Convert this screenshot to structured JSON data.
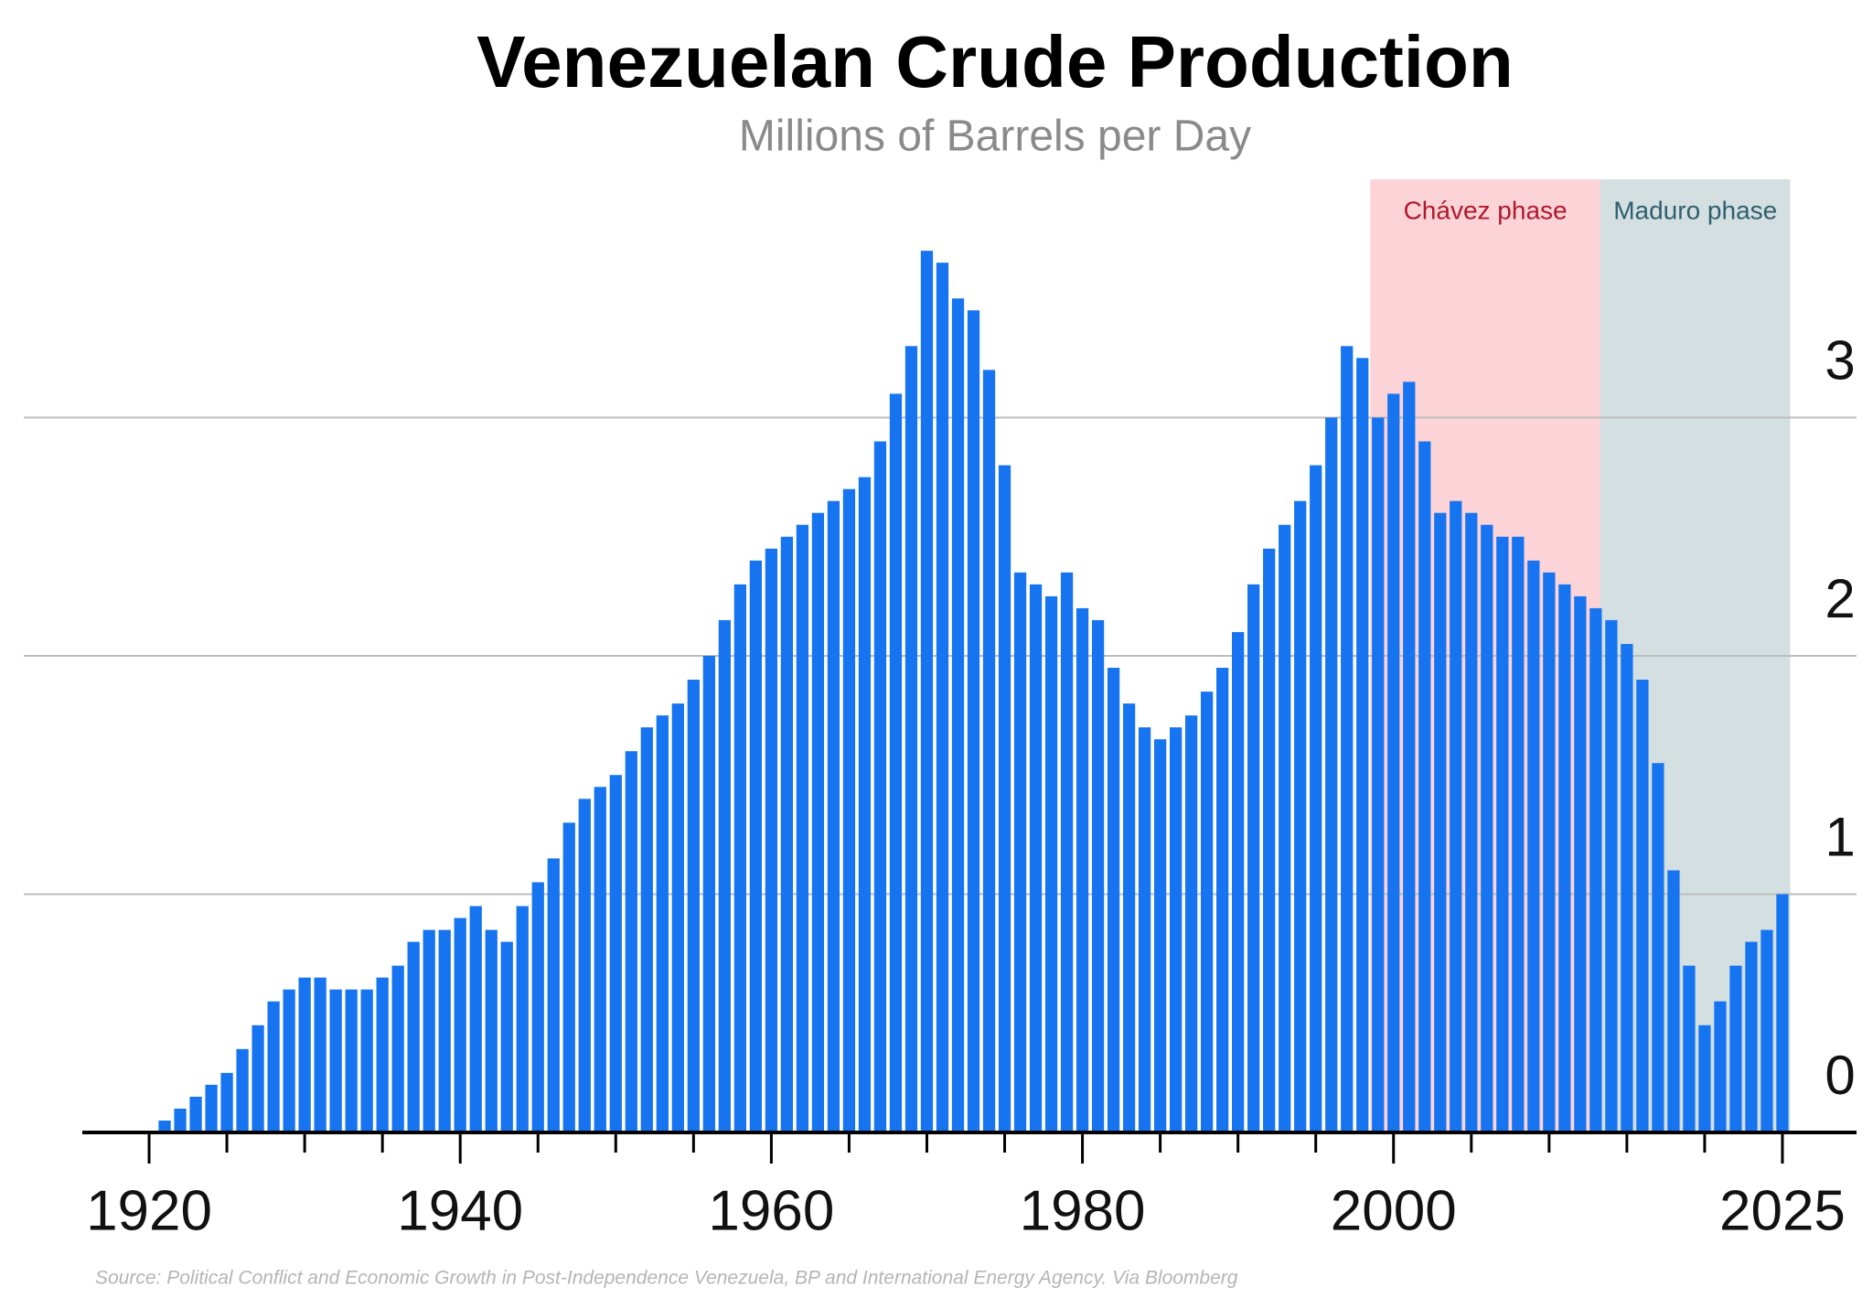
{
  "chart_data": {
    "type": "bar",
    "title": "Venezuelan Crude Production",
    "subtitle": "Millions of Barrels per Day",
    "source": "Source: Political Conflict and Economic Growth in Post-Independence Venezuela, BP and International Energy Agency. Via Bloomberg",
    "color": "#1774f0",
    "x": [
      1921,
      1922,
      1923,
      1924,
      1925,
      1926,
      1927,
      1928,
      1929,
      1930,
      1931,
      1932,
      1933,
      1934,
      1935,
      1936,
      1937,
      1938,
      1939,
      1940,
      1941,
      1942,
      1943,
      1944,
      1945,
      1946,
      1947,
      1948,
      1949,
      1950,
      1951,
      1952,
      1953,
      1954,
      1955,
      1956,
      1957,
      1958,
      1959,
      1960,
      1961,
      1962,
      1963,
      1964,
      1965,
      1966,
      1967,
      1968,
      1969,
      1970,
      1971,
      1972,
      1973,
      1974,
      1975,
      1976,
      1977,
      1978,
      1979,
      1980,
      1981,
      1982,
      1983,
      1984,
      1985,
      1986,
      1987,
      1988,
      1989,
      1990,
      1991,
      1992,
      1993,
      1994,
      1995,
      1996,
      1997,
      1998,
      1999,
      2000,
      2001,
      2002,
      2003,
      2004,
      2005,
      2006,
      2007,
      2008,
      2009,
      2010,
      2011,
      2012,
      2013,
      2014,
      2015,
      2016,
      2017,
      2018,
      2019,
      2020,
      2021,
      2022,
      2023,
      2024,
      2025
    ],
    "values": [
      0.05,
      0.1,
      0.15,
      0.2,
      0.25,
      0.35,
      0.45,
      0.55,
      0.6,
      0.65,
      0.65,
      0.6,
      0.6,
      0.6,
      0.65,
      0.7,
      0.8,
      0.85,
      0.85,
      0.9,
      0.95,
      0.85,
      0.8,
      0.95,
      1.05,
      1.15,
      1.3,
      1.4,
      1.45,
      1.5,
      1.6,
      1.7,
      1.75,
      1.8,
      1.9,
      2.0,
      2.15,
      2.3,
      2.4,
      2.45,
      2.5,
      2.55,
      2.6,
      2.65,
      2.7,
      2.75,
      2.9,
      3.1,
      3.3,
      3.7,
      3.65,
      3.5,
      3.45,
      3.2,
      2.8,
      2.35,
      2.3,
      2.25,
      2.35,
      2.2,
      2.15,
      1.95,
      1.8,
      1.7,
      1.65,
      1.7,
      1.75,
      1.85,
      1.95,
      2.1,
      2.3,
      2.45,
      2.55,
      2.65,
      2.8,
      3.0,
      3.3,
      3.25,
      3.0,
      3.1,
      3.15,
      2.9,
      2.6,
      2.65,
      2.6,
      2.55,
      2.5,
      2.5,
      2.4,
      2.35,
      2.3,
      2.25,
      2.2,
      2.15,
      2.05,
      1.9,
      1.55,
      1.1,
      0.7,
      0.45,
      0.55,
      0.7,
      0.8,
      0.85,
      1.0
    ],
    "xlim": [
      1916,
      2029
    ],
    "xticks": [
      1920,
      1940,
      1960,
      1980,
      2000,
      2025
    ],
    "xminorticks": [
      1925,
      1930,
      1935,
      1945,
      1950,
      1955,
      1965,
      1970,
      1975,
      1985,
      1990,
      1995,
      2005,
      2010,
      2015,
      2020
    ],
    "ylim": [
      0,
      4
    ],
    "yticks": [
      0,
      1,
      2,
      3
    ],
    "grid": true,
    "annotations": [
      {
        "label": "Chávez phase",
        "start": 1998.5,
        "end": 2013.3,
        "color": "#fcd4d8",
        "text_color": "#b0192b"
      },
      {
        "label": "Maduro phase",
        "start": 2013.3,
        "end": 2025.5,
        "color": "#d3dfe0",
        "text_color": "#2f5f6e"
      }
    ]
  }
}
